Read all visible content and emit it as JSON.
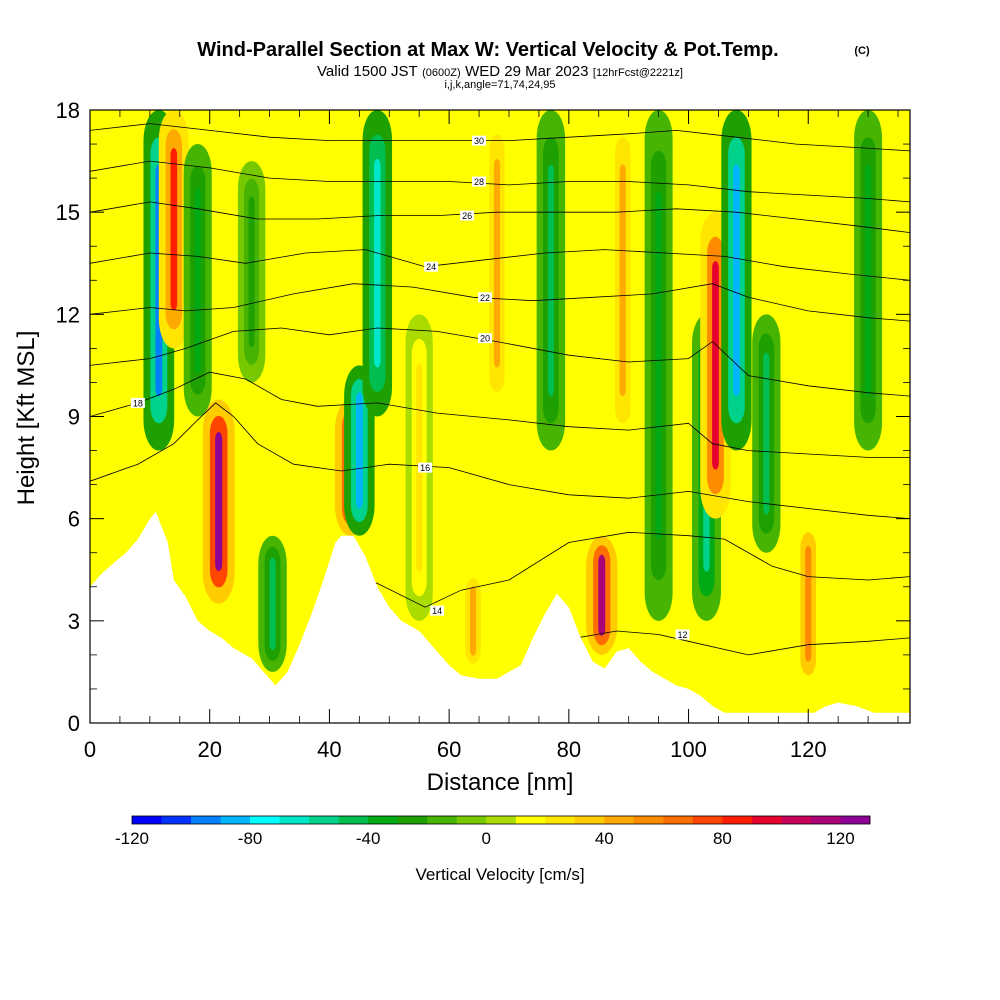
{
  "title": {
    "main": "Wind-Parallel Section at Max W: Vertical Velocity & Pot.Temp.",
    "copyright": "(C)",
    "valid_prefix": "Valid 1500 JST",
    "valid_utc": "(0600Z)",
    "valid_date": "WED 29 Mar 2023",
    "forecast": "[12hrFcst@2221z]",
    "indices": "i,j,k,angle=71,74,24,95"
  },
  "chart_data": {
    "type": "heatmap",
    "xlabel": "Distance [nm]",
    "ylabel": "Height [Kft MSL]",
    "xlim": [
      0,
      137
    ],
    "ylim": [
      0,
      18
    ],
    "x_ticks": [
      0,
      20,
      40,
      60,
      80,
      100,
      120
    ],
    "x_tick_labels": [
      "0",
      "20",
      "40",
      "60",
      "80",
      "100",
      "120"
    ],
    "y_ticks": [
      0,
      3,
      6,
      9,
      12,
      15,
      18
    ],
    "y_tick_labels": [
      "0",
      "3",
      "6",
      "9",
      "12",
      "15",
      "18"
    ],
    "colorbar": {
      "title": "Vertical Velocity [cm/s]",
      "min": -120,
      "max": 130,
      "step": 10,
      "tick_values": [
        -120,
        -80,
        -40,
        0,
        40,
        80,
        120
      ],
      "tick_labels": [
        "-120",
        "-80",
        "-40",
        "0",
        "40",
        "80",
        "120"
      ],
      "colors": [
        "#0000ff",
        "#0033ff",
        "#0080ff",
        "#00b4ff",
        "#00ffff",
        "#00e6c8",
        "#00d28c",
        "#00be50",
        "#00aa14",
        "#1ea000",
        "#46b400",
        "#78c800",
        "#aadc00",
        "#ffff00",
        "#ffe600",
        "#ffcc00",
        "#ffaa00",
        "#ff8c00",
        "#ff6e00",
        "#ff4600",
        "#ff1e00",
        "#e6002d",
        "#c8005a",
        "#aa0078",
        "#8c0096"
      ]
    },
    "terrain_kft": [
      [
        0,
        4.0
      ],
      [
        2,
        4.4
      ],
      [
        4,
        4.7
      ],
      [
        6,
        5.0
      ],
      [
        8,
        5.4
      ],
      [
        10,
        6.0
      ],
      [
        11,
        6.2
      ],
      [
        13,
        5.3
      ],
      [
        14,
        4.2
      ],
      [
        16,
        3.7
      ],
      [
        18,
        3.0
      ],
      [
        20,
        2.7
      ],
      [
        22,
        2.5
      ],
      [
        24,
        2.2
      ],
      [
        27,
        1.9
      ],
      [
        29,
        1.5
      ],
      [
        31,
        1.1
      ],
      [
        33,
        1.5
      ],
      [
        35,
        2.3
      ],
      [
        37,
        3.2
      ],
      [
        39,
        4.2
      ],
      [
        41,
        5.3
      ],
      [
        42,
        5.5
      ],
      [
        44,
        5.5
      ],
      [
        46,
        4.9
      ],
      [
        48,
        4.0
      ],
      [
        50,
        3.4
      ],
      [
        52,
        3.0
      ],
      [
        55,
        2.7
      ],
      [
        58,
        2.1
      ],
      [
        60,
        1.7
      ],
      [
        62,
        1.4
      ],
      [
        65,
        1.3
      ],
      [
        68,
        1.3
      ],
      [
        70,
        1.5
      ],
      [
        72,
        1.7
      ],
      [
        74,
        2.5
      ],
      [
        76,
        3.2
      ],
      [
        78,
        3.8
      ],
      [
        80,
        3.4
      ],
      [
        82,
        2.5
      ],
      [
        84,
        1.8
      ],
      [
        86,
        1.6
      ],
      [
        88,
        2.1
      ],
      [
        90,
        2.2
      ],
      [
        92,
        1.8
      ],
      [
        94,
        1.5
      ],
      [
        96,
        1.3
      ],
      [
        98,
        1.1
      ],
      [
        100,
        1.0
      ],
      [
        102,
        0.8
      ],
      [
        104,
        0.5
      ],
      [
        106,
        0.3
      ],
      [
        110,
        0.3
      ],
      [
        114,
        0.3
      ],
      [
        118,
        0.3
      ],
      [
        121,
        0.3
      ],
      [
        123,
        0.5
      ],
      [
        125,
        0.6
      ],
      [
        128,
        0.5
      ],
      [
        131,
        0.3
      ],
      [
        134,
        0.3
      ],
      [
        137,
        0.3
      ]
    ],
    "features": [
      {
        "x": 11.5,
        "y_range": [
          8.0,
          18.0
        ],
        "w": -95
      },
      {
        "x": 14.0,
        "y_range": [
          11.0,
          18.0
        ],
        "w": 80
      },
      {
        "x": 18.0,
        "y_range": [
          9.0,
          17.0
        ],
        "w": -40
      },
      {
        "x": 21.5,
        "y_range": [
          3.5,
          9.5
        ],
        "w": 120
      },
      {
        "x": 27.0,
        "y_range": [
          10.0,
          16.5
        ],
        "w": -30
      },
      {
        "x": 30.5,
        "y_range": [
          1.5,
          5.5
        ],
        "w": -50
      },
      {
        "x": 43.5,
        "y_range": [
          5.5,
          9.5
        ],
        "w": 100
      },
      {
        "x": 45.0,
        "y_range": [
          5.5,
          10.5
        ],
        "w": -90
      },
      {
        "x": 48.0,
        "y_range": [
          9.0,
          18.0
        ],
        "w": -70
      },
      {
        "x": 55.0,
        "y_range": [
          3.0,
          12.0
        ],
        "w": 25
      },
      {
        "x": 64.0,
        "y_range": [
          1.5,
          4.5
        ],
        "w": 45
      },
      {
        "x": 68.0,
        "y_range": [
          9.0,
          18.0
        ],
        "w": 40
      },
      {
        "x": 77.0,
        "y_range": [
          8.0,
          18.0
        ],
        "w": -50
      },
      {
        "x": 85.5,
        "y_range": [
          2.0,
          5.5
        ],
        "w": 110
      },
      {
        "x": 89.0,
        "y_range": [
          8.0,
          18.0
        ],
        "w": 40
      },
      {
        "x": 95.0,
        "y_range": [
          3.0,
          18.0
        ],
        "w": -40
      },
      {
        "x": 103.0,
        "y_range": [
          3.0,
          12.0
        ],
        "w": -60
      },
      {
        "x": 104.5,
        "y_range": [
          6.0,
          15.0
        ],
        "w": 90
      },
      {
        "x": 108.0,
        "y_range": [
          8.0,
          18.0
        ],
        "w": -85
      },
      {
        "x": 113.0,
        "y_range": [
          5.0,
          12.0
        ],
        "w": -45
      },
      {
        "x": 120.0,
        "y_range": [
          1.0,
          6.0
        ],
        "w": 50
      },
      {
        "x": 130.0,
        "y_range": [
          8.0,
          18.0
        ],
        "w": -40
      }
    ],
    "theta_contours": [
      {
        "level": 12,
        "label": "12",
        "label_x": 99,
        "label_y": 2.6,
        "points": [
          [
            78,
            2.4
          ],
          [
            88,
            2.7
          ],
          [
            95,
            2.6
          ],
          [
            100,
            2.4
          ],
          [
            110,
            2.0
          ],
          [
            120,
            2.3
          ],
          [
            130,
            2.4
          ],
          [
            137,
            2.5
          ]
        ]
      },
      {
        "level": 14,
        "label": "14",
        "label_x": 58,
        "label_y": 3.3,
        "points": [
          [
            40,
            4.6
          ],
          [
            48,
            4.1
          ],
          [
            56,
            3.4
          ],
          [
            62,
            3.9
          ],
          [
            70,
            4.2
          ],
          [
            80,
            5.3
          ],
          [
            90,
            5.6
          ],
          [
            100,
            5.5
          ],
          [
            106,
            5.4
          ],
          [
            114,
            4.6
          ],
          [
            120,
            4.3
          ],
          [
            130,
            4.2
          ],
          [
            137,
            4.3
          ]
        ]
      },
      {
        "level": 16,
        "label": "16",
        "label_x": 56,
        "label_y": 7.5,
        "points": [
          [
            0,
            7.1
          ],
          [
            8,
            7.6
          ],
          [
            14,
            8.2
          ],
          [
            18,
            8.9
          ],
          [
            21,
            9.4
          ],
          [
            24,
            9.0
          ],
          [
            28,
            8.2
          ],
          [
            34,
            7.6
          ],
          [
            42,
            7.4
          ],
          [
            50,
            7.6
          ],
          [
            60,
            7.5
          ],
          [
            70,
            7.0
          ],
          [
            80,
            6.7
          ],
          [
            90,
            6.6
          ],
          [
            100,
            6.8
          ],
          [
            110,
            6.5
          ],
          [
            120,
            6.3
          ],
          [
            130,
            6.1
          ],
          [
            137,
            6.0
          ]
        ]
      },
      {
        "level": 18,
        "label": "18",
        "label_x": 8,
        "label_y": 9.4,
        "points": [
          [
            0,
            9.0
          ],
          [
            8,
            9.4
          ],
          [
            14,
            9.8
          ],
          [
            20,
            10.3
          ],
          [
            26,
            10.1
          ],
          [
            32,
            9.5
          ],
          [
            38,
            9.3
          ],
          [
            48,
            9.4
          ],
          [
            58,
            9.1
          ],
          [
            70,
            8.9
          ],
          [
            80,
            8.7
          ],
          [
            90,
            8.6
          ],
          [
            100,
            8.8
          ],
          [
            104,
            8.2
          ],
          [
            110,
            8.0
          ],
          [
            120,
            7.9
          ],
          [
            130,
            7.8
          ],
          [
            137,
            7.8
          ]
        ]
      },
      {
        "level": 20,
        "label": "20",
        "label_x": 66,
        "label_y": 11.3,
        "points": [
          [
            0,
            10.5
          ],
          [
            10,
            10.7
          ],
          [
            16,
            11.0
          ],
          [
            24,
            11.5
          ],
          [
            32,
            11.6
          ],
          [
            40,
            11.4
          ],
          [
            48,
            11.6
          ],
          [
            58,
            11.5
          ],
          [
            68,
            11.2
          ],
          [
            80,
            10.8
          ],
          [
            90,
            10.6
          ],
          [
            100,
            10.7
          ],
          [
            104,
            11.2
          ],
          [
            110,
            10.2
          ],
          [
            120,
            9.9
          ],
          [
            130,
            9.7
          ],
          [
            137,
            9.6
          ]
        ]
      },
      {
        "level": 22,
        "label": "22",
        "label_x": 66,
        "label_y": 12.5,
        "points": [
          [
            0,
            12.0
          ],
          [
            10,
            12.2
          ],
          [
            16,
            12.1
          ],
          [
            24,
            12.2
          ],
          [
            34,
            12.6
          ],
          [
            44,
            12.9
          ],
          [
            54,
            12.8
          ],
          [
            64,
            12.5
          ],
          [
            74,
            12.4
          ],
          [
            84,
            12.5
          ],
          [
            94,
            12.6
          ],
          [
            104,
            12.9
          ],
          [
            110,
            12.5
          ],
          [
            120,
            12.1
          ],
          [
            130,
            11.9
          ],
          [
            137,
            11.8
          ]
        ]
      },
      {
        "level": 24,
        "label": "24",
        "label_x": 57,
        "label_y": 13.4,
        "points": [
          [
            0,
            13.5
          ],
          [
            10,
            13.8
          ],
          [
            18,
            13.7
          ],
          [
            26,
            13.5
          ],
          [
            36,
            13.8
          ],
          [
            46,
            13.9
          ],
          [
            56,
            13.4
          ],
          [
            66,
            13.6
          ],
          [
            76,
            13.8
          ],
          [
            86,
            13.9
          ],
          [
            96,
            13.8
          ],
          [
            106,
            13.7
          ],
          [
            116,
            13.4
          ],
          [
            126,
            13.2
          ],
          [
            137,
            13.0
          ]
        ]
      },
      {
        "level": 26,
        "label": "26",
        "label_x": 63,
        "label_y": 14.9,
        "points": [
          [
            0,
            15.0
          ],
          [
            10,
            15.3
          ],
          [
            18,
            15.1
          ],
          [
            28,
            14.8
          ],
          [
            38,
            14.8
          ],
          [
            48,
            14.9
          ],
          [
            58,
            14.9
          ],
          [
            68,
            15.0
          ],
          [
            78,
            15.0
          ],
          [
            88,
            15.0
          ],
          [
            98,
            15.1
          ],
          [
            108,
            15.0
          ],
          [
            118,
            14.8
          ],
          [
            128,
            14.6
          ],
          [
            137,
            14.4
          ]
        ]
      },
      {
        "level": 28,
        "label": "28",
        "label_x": 65,
        "label_y": 15.9,
        "points": [
          [
            0,
            16.2
          ],
          [
            10,
            16.5
          ],
          [
            20,
            16.3
          ],
          [
            30,
            16.0
          ],
          [
            40,
            15.9
          ],
          [
            50,
            15.9
          ],
          [
            60,
            15.9
          ],
          [
            70,
            15.8
          ],
          [
            80,
            15.9
          ],
          [
            90,
            15.9
          ],
          [
            100,
            15.8
          ],
          [
            110,
            15.6
          ],
          [
            120,
            15.5
          ],
          [
            130,
            15.4
          ],
          [
            137,
            15.3
          ]
        ]
      },
      {
        "level": 30,
        "label": "30",
        "label_x": 65,
        "label_y": 17.1,
        "points": [
          [
            0,
            17.4
          ],
          [
            10,
            17.6
          ],
          [
            20,
            17.4
          ],
          [
            30,
            17.2
          ],
          [
            40,
            17.1
          ],
          [
            50,
            17.1
          ],
          [
            60,
            17.1
          ],
          [
            70,
            17.1
          ],
          [
            80,
            17.2
          ],
          [
            90,
            17.3
          ],
          [
            98,
            17.4
          ],
          [
            108,
            17.2
          ],
          [
            118,
            17.0
          ],
          [
            128,
            16.9
          ],
          [
            137,
            16.8
          ]
        ]
      }
    ]
  }
}
